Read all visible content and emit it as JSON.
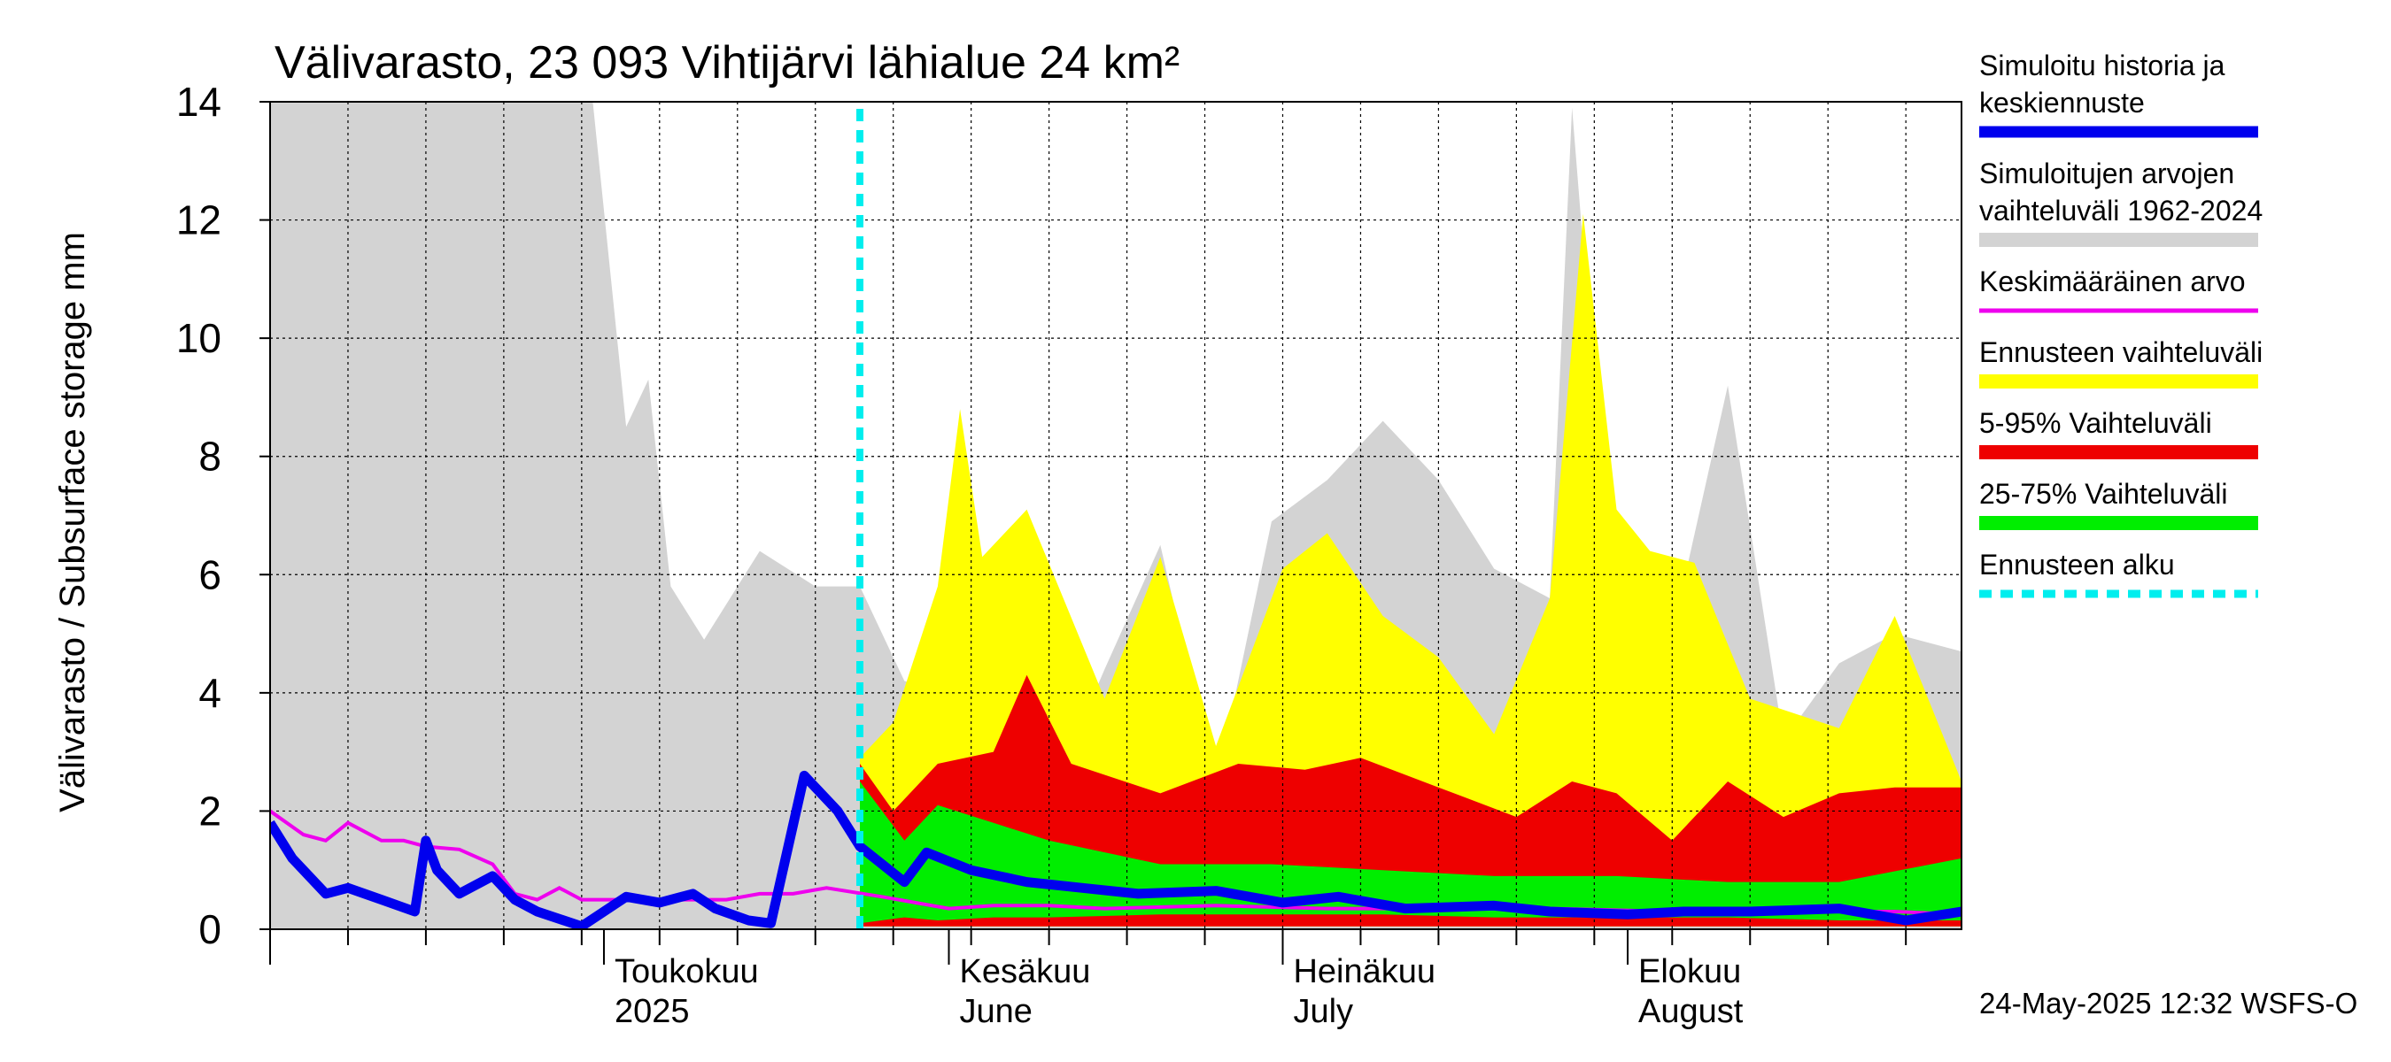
{
  "chart_data": {
    "type": "area",
    "title": "Välivarasto, 23 093 Vihtijärvi lähialue 24 km²",
    "ylabel": "Välivarasto / Subsurface storage  mm",
    "xlabel": "",
    "ylim": [
      0,
      14
    ],
    "yticks": [
      0,
      2,
      4,
      6,
      8,
      10,
      12,
      14
    ],
    "grid": true,
    "x_start": "2025-04-01",
    "x_end": "2025-08-31",
    "forecast_start": "2025-05-24",
    "month_labels": [
      {
        "date": "2025-05-01",
        "fi": "Toukokuu",
        "en": "2025"
      },
      {
        "date": "2025-06-01",
        "fi": "Kesäkuu",
        "en": "June"
      },
      {
        "date": "2025-07-01",
        "fi": "Heinäkuu",
        "en": "July"
      },
      {
        "date": "2025-08-01",
        "fi": "Elokuu",
        "en": "August"
      }
    ],
    "legend_position": "right",
    "legend": [
      {
        "label": "Simuloitu historia ja keskiennuste",
        "color": "#0000ee",
        "style": "line"
      },
      {
        "label": "Simuloitujen arvojen vaihteluväli 1962-2024",
        "color": "#d3d3d3",
        "style": "band"
      },
      {
        "label": "Keskimääräinen arvo",
        "color": "#ee00ee",
        "style": "line"
      },
      {
        "label": "Ennusteen vaihteluväli",
        "color": "#ffff00",
        "style": "band"
      },
      {
        "label": "5-95% Vaihteluväli",
        "color": "#ee0000",
        "style": "band"
      },
      {
        "label": "25-75% Vaihteluväli",
        "color": "#00ee00",
        "style": "band"
      },
      {
        "label": "Ennusteen alku",
        "color": "#00eeee",
        "style": "dashed"
      }
    ],
    "series": {
      "historical_range": {
        "dates": [
          "2025-04-01",
          "2025-04-15",
          "2025-04-30",
          "2025-05-03",
          "2025-05-05",
          "2025-05-07",
          "2025-05-10",
          "2025-05-15",
          "2025-05-20",
          "2025-05-24",
          "2025-05-28",
          "2025-06-01",
          "2025-06-05",
          "2025-06-10",
          "2025-06-15",
          "2025-06-20",
          "2025-06-25",
          "2025-06-30",
          "2025-07-05",
          "2025-07-10",
          "2025-07-15",
          "2025-07-20",
          "2025-07-25",
          "2025-07-27",
          "2025-07-31",
          "2025-08-05",
          "2025-08-10",
          "2025-08-15",
          "2025-08-20",
          "2025-08-25",
          "2025-08-31"
        ],
        "low": [
          0,
          0,
          0,
          0,
          0,
          0,
          0,
          0,
          0,
          0,
          0,
          0,
          0,
          0,
          0,
          0,
          0,
          0,
          0,
          0,
          0,
          0,
          0,
          0,
          0,
          0,
          0,
          0,
          0,
          0,
          0
        ],
        "high": [
          14,
          14,
          14,
          8.5,
          9.3,
          5.8,
          4.9,
          6.4,
          5.8,
          5.8,
          4.2,
          4.0,
          5.8,
          2.2,
          4.4,
          6.5,
          2.4,
          6.9,
          7.6,
          8.6,
          7.6,
          6.1,
          5.6,
          13.9,
          4.5,
          5.0,
          9.2,
          3.2,
          4.5,
          5.0,
          4.7
        ]
      },
      "forecast_range": {
        "dates": [
          "2025-05-24",
          "2025-05-27",
          "2025-05-31",
          "2025-06-02",
          "2025-06-04",
          "2025-06-08",
          "2025-06-15",
          "2025-06-20",
          "2025-06-25",
          "2025-07-01",
          "2025-07-05",
          "2025-07-10",
          "2025-07-15",
          "2025-07-20",
          "2025-07-25",
          "2025-07-28",
          "2025-07-31",
          "2025-08-03",
          "2025-08-07",
          "2025-08-12",
          "2025-08-20",
          "2025-08-25",
          "2025-08-31"
        ],
        "low": [
          0.05,
          0.05,
          0.05,
          0.05,
          0.05,
          0.05,
          0.05,
          0.05,
          0.05,
          0.05,
          0.05,
          0.05,
          0.05,
          0.05,
          0.05,
          0.05,
          0.05,
          0.05,
          0.05,
          0.05,
          0.05,
          0.05,
          0.05
        ],
        "high": [
          2.9,
          3.5,
          5.8,
          8.8,
          6.3,
          7.1,
          3.9,
          6.3,
          3.1,
          6.1,
          6.7,
          5.3,
          4.6,
          3.3,
          5.6,
          12.1,
          7.1,
          6.4,
          6.2,
          3.9,
          3.4,
          5.3,
          2.5
        ]
      },
      "p5_95": {
        "dates": [
          "2025-05-24",
          "2025-05-27",
          "2025-05-31",
          "2025-06-05",
          "2025-06-08",
          "2025-06-12",
          "2025-06-20",
          "2025-06-27",
          "2025-07-03",
          "2025-07-08",
          "2025-07-15",
          "2025-07-22",
          "2025-07-27",
          "2025-07-31",
          "2025-08-05",
          "2025-08-10",
          "2025-08-15",
          "2025-08-20",
          "2025-08-25",
          "2025-08-31"
        ],
        "low": [
          0.05,
          0.05,
          0.05,
          0.05,
          0.05,
          0.05,
          0.05,
          0.05,
          0.05,
          0.05,
          0.05,
          0.05,
          0.05,
          0.05,
          0.05,
          0.05,
          0.05,
          0.05,
          0.05,
          0.05
        ],
        "high": [
          2.8,
          2.0,
          2.8,
          3.0,
          4.3,
          2.8,
          2.3,
          2.8,
          2.7,
          2.9,
          2.4,
          1.9,
          2.5,
          2.3,
          1.5,
          2.5,
          1.9,
          2.3,
          2.4,
          2.4
        ]
      },
      "p25_75": {
        "dates": [
          "2025-05-24",
          "2025-05-28",
          "2025-05-31",
          "2025-06-05",
          "2025-06-10",
          "2025-06-20",
          "2025-06-30",
          "2025-07-10",
          "2025-07-20",
          "2025-07-31",
          "2025-08-10",
          "2025-08-20",
          "2025-08-31"
        ],
        "low": [
          0.1,
          0.2,
          0.15,
          0.2,
          0.2,
          0.25,
          0.25,
          0.25,
          0.2,
          0.2,
          0.2,
          0.15,
          0.15
        ],
        "high": [
          2.5,
          1.5,
          2.1,
          1.8,
          1.5,
          1.1,
          1.1,
          1.0,
          0.9,
          0.9,
          0.8,
          0.8,
          1.2
        ]
      },
      "median": {
        "dates": [
          "2025-04-01",
          "2025-04-03",
          "2025-04-06",
          "2025-04-08",
          "2025-04-11",
          "2025-04-14",
          "2025-04-15",
          "2025-04-16",
          "2025-04-18",
          "2025-04-21",
          "2025-04-23",
          "2025-04-25",
          "2025-04-29",
          "2025-05-03",
          "2025-05-06",
          "2025-05-09",
          "2025-05-11",
          "2025-05-14",
          "2025-05-16",
          "2025-05-19",
          "2025-05-22",
          "2025-05-24",
          "2025-05-28",
          "2025-05-30",
          "2025-06-03",
          "2025-06-08",
          "2025-06-13",
          "2025-06-18",
          "2025-06-25",
          "2025-07-01",
          "2025-07-06",
          "2025-07-12",
          "2025-07-20",
          "2025-07-25",
          "2025-08-01",
          "2025-08-06",
          "2025-08-12",
          "2025-08-20",
          "2025-08-26",
          "2025-08-31"
        ],
        "values": [
          1.8,
          1.2,
          0.6,
          0.7,
          0.5,
          0.3,
          1.5,
          1.0,
          0.6,
          0.9,
          0.5,
          0.3,
          0.05,
          0.55,
          0.45,
          0.6,
          0.35,
          0.15,
          0.1,
          2.6,
          2.0,
          1.4,
          0.8,
          1.3,
          1.0,
          0.8,
          0.7,
          0.6,
          0.65,
          0.45,
          0.55,
          0.35,
          0.4,
          0.3,
          0.25,
          0.3,
          0.3,
          0.35,
          0.15,
          0.3
        ]
      },
      "mean": {
        "dates": [
          "2025-04-01",
          "2025-04-04",
          "2025-04-06",
          "2025-04-08",
          "2025-04-11",
          "2025-04-13",
          "2025-04-15",
          "2025-04-18",
          "2025-04-21",
          "2025-04-23",
          "2025-04-25",
          "2025-04-27",
          "2025-04-29",
          "2025-05-03",
          "2025-05-06",
          "2025-05-09",
          "2025-05-12",
          "2025-05-15",
          "2025-05-18",
          "2025-05-21",
          "2025-05-26",
          "2025-06-01",
          "2025-06-05",
          "2025-06-10",
          "2025-06-15",
          "2025-06-25",
          "2025-07-05",
          "2025-07-15",
          "2025-07-25",
          "2025-08-05",
          "2025-08-15",
          "2025-08-25",
          "2025-08-31"
        ],
        "values": [
          2.0,
          1.6,
          1.5,
          1.8,
          1.5,
          1.5,
          1.4,
          1.35,
          1.1,
          0.6,
          0.5,
          0.7,
          0.5,
          0.5,
          0.5,
          0.5,
          0.5,
          0.6,
          0.6,
          0.7,
          0.55,
          0.35,
          0.4,
          0.4,
          0.35,
          0.4,
          0.35,
          0.35,
          0.35,
          0.3,
          0.3,
          0.3,
          0.25
        ]
      }
    }
  },
  "footer": {
    "timestamp": "24-May-2025 12:32 WSFS-O"
  }
}
